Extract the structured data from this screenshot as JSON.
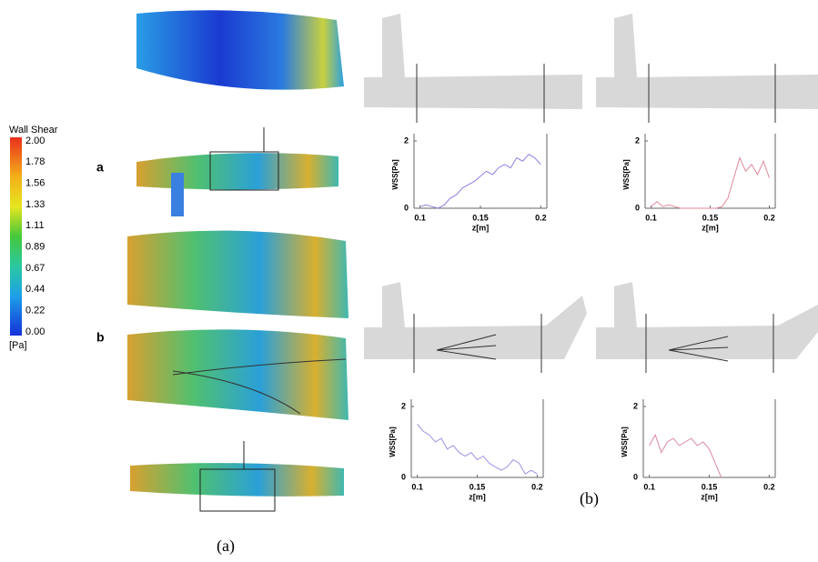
{
  "colorbar": {
    "title": "Wall Shear",
    "labels": [
      "2.00",
      "1.78",
      "1.56",
      "1.33",
      "1.11",
      "0.89",
      "0.67",
      "0.44",
      "0.22",
      "0.00"
    ],
    "unit": "[Pa]"
  },
  "row_labels": [
    "a",
    "b"
  ],
  "panel_labels": [
    "(a)",
    "(b)"
  ],
  "chart_data": [
    {
      "type": "line",
      "xlabel": "z[m]",
      "ylabel": "WSS[Pa]",
      "xlim": [
        0.095,
        0.205
      ],
      "ylim": [
        0,
        2
      ],
      "xticks": [
        0.1,
        0.15,
        0.2
      ],
      "yticks": [
        0,
        2
      ],
      "series": [
        {
          "color": "#8a7fe0",
          "x": [
            0.1,
            0.105,
            0.11,
            0.115,
            0.12,
            0.125,
            0.13,
            0.135,
            0.14,
            0.145,
            0.15,
            0.155,
            0.16,
            0.165,
            0.17,
            0.175,
            0.18,
            0.185,
            0.19,
            0.195,
            0.2
          ],
          "values": [
            0.05,
            0.1,
            0.05,
            0.0,
            0.1,
            0.3,
            0.4,
            0.6,
            0.7,
            0.8,
            0.95,
            1.1,
            1.0,
            1.2,
            1.3,
            1.2,
            1.5,
            1.4,
            1.6,
            1.5,
            1.3
          ]
        }
      ]
    },
    {
      "type": "line",
      "xlabel": "z[m]",
      "ylabel": "WSS[Pa]",
      "xlim": [
        0.095,
        0.205
      ],
      "ylim": [
        0,
        2
      ],
      "xticks": [
        0.1,
        0.15,
        0.2
      ],
      "yticks": [
        0,
        2
      ],
      "series": [
        {
          "color": "#e08a9a",
          "x": [
            0.1,
            0.105,
            0.11,
            0.115,
            0.12,
            0.125,
            0.13,
            0.135,
            0.14,
            0.145,
            0.15,
            0.155,
            0.16,
            0.165,
            0.17,
            0.175,
            0.18,
            0.185,
            0.19,
            0.195,
            0.2
          ],
          "values": [
            0.05,
            0.2,
            0.05,
            0.1,
            0.05,
            0,
            0,
            0,
            0,
            0,
            0,
            0,
            0.05,
            0.3,
            0.9,
            1.5,
            1.1,
            1.3,
            1.0,
            1.4,
            0.9
          ]
        }
      ]
    },
    {
      "type": "line",
      "xlabel": "z[m]",
      "ylabel": "WSS[Pa]",
      "xlim": [
        0.095,
        0.205
      ],
      "ylim": [
        0,
        2
      ],
      "xticks": [
        0.1,
        0.15,
        0.2
      ],
      "yticks": [
        0,
        2
      ],
      "series": [
        {
          "color": "#9a94e0",
          "x": [
            0.1,
            0.105,
            0.11,
            0.115,
            0.12,
            0.125,
            0.13,
            0.135,
            0.14,
            0.145,
            0.15,
            0.155,
            0.16,
            0.165,
            0.17,
            0.175,
            0.18,
            0.185,
            0.19,
            0.195,
            0.2
          ],
          "values": [
            1.5,
            1.3,
            1.2,
            1.0,
            1.1,
            0.8,
            0.9,
            0.7,
            0.6,
            0.7,
            0.5,
            0.6,
            0.4,
            0.3,
            0.2,
            0.3,
            0.5,
            0.4,
            0.1,
            0.2,
            0.1
          ]
        }
      ]
    },
    {
      "type": "line",
      "xlabel": "z[m]",
      "ylabel": "WSS[Pa]",
      "xlim": [
        0.095,
        0.205
      ],
      "ylim": [
        0,
        2
      ],
      "xticks": [
        0.1,
        0.15,
        0.2
      ],
      "yticks": [
        0,
        2
      ],
      "series": [
        {
          "color": "#d88aa0",
          "x": [
            0.1,
            0.105,
            0.11,
            0.115,
            0.12,
            0.125,
            0.13,
            0.135,
            0.14,
            0.145,
            0.15,
            0.155,
            0.16
          ],
          "values": [
            0.9,
            1.2,
            0.7,
            1.0,
            1.1,
            0.9,
            1.0,
            1.1,
            0.9,
            1.0,
            0.8,
            0.4,
            0.0
          ]
        }
      ]
    }
  ]
}
